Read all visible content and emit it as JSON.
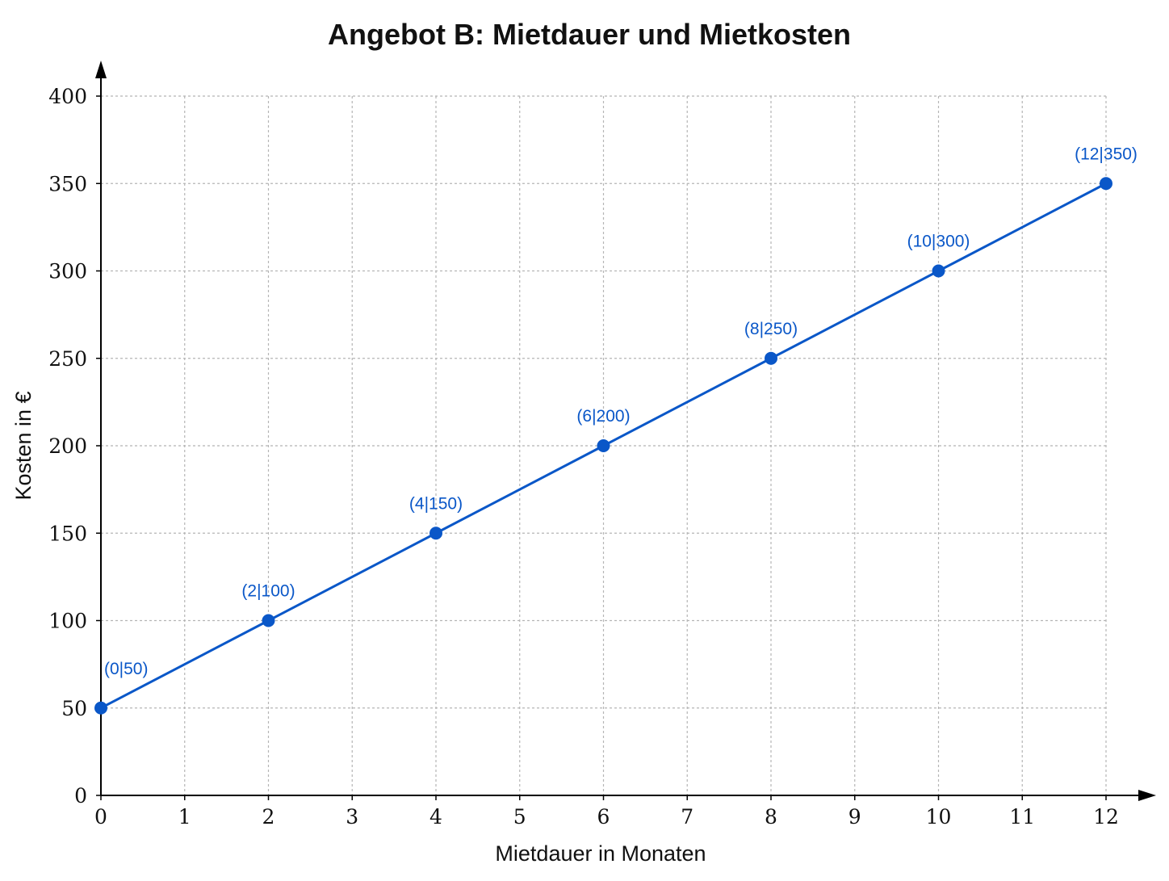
{
  "chart_data": {
    "type": "line",
    "title": "Angebot B: Mietdauer und Mietkosten",
    "xlabel": "Mietdauer in Monaten",
    "ylabel": "Kosten in €",
    "xlim": [
      0,
      12
    ],
    "ylim": [
      0,
      400
    ],
    "x_ticks": [
      "0",
      "1",
      "2",
      "3",
      "4",
      "5",
      "6",
      "7",
      "8",
      "9",
      "10",
      "11",
      "12"
    ],
    "y_ticks": [
      "0",
      "50",
      "100",
      "150",
      "200",
      "250",
      "300",
      "350",
      "400"
    ],
    "grid": true,
    "series": [
      {
        "x": [
          0,
          2,
          4,
          6,
          8,
          10,
          12
        ],
        "y": [
          50,
          100,
          150,
          200,
          250,
          300,
          350
        ],
        "point_labels": [
          "(0|50)",
          "(2|100)",
          "(4|150)",
          "(6|200)",
          "(8|250)",
          "(10|300)",
          "(12|350)"
        ],
        "color": "#0a57c8"
      }
    ]
  }
}
